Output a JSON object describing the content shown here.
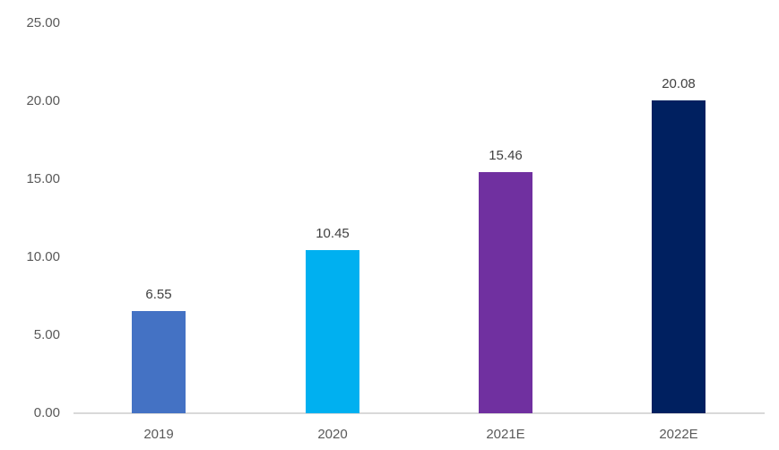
{
  "chart_data": {
    "type": "bar",
    "title": "",
    "xlabel": "",
    "ylabel": "",
    "categories": [
      "2019",
      "2020",
      "2021E",
      "2022E"
    ],
    "values": [
      6.55,
      10.45,
      15.46,
      20.08
    ],
    "data_labels": [
      "6.55",
      "10.45",
      "15.46",
      "20.08"
    ],
    "bar_colors": [
      "#4472C4",
      "#00B0F0",
      "#7030A0",
      "#002060"
    ],
    "ylim": [
      0,
      25
    ],
    "ytick_labels": [
      "0.00",
      "5.00",
      "10.00",
      "15.00",
      "20.00",
      "25.00"
    ],
    "grid": false,
    "legend": "none",
    "axis_line_color": "#D9D9D9",
    "tick_label_color": "#595959",
    "category_label_color": "#595959",
    "data_label_color": "#404040",
    "background_color": "#FFFFFF"
  }
}
